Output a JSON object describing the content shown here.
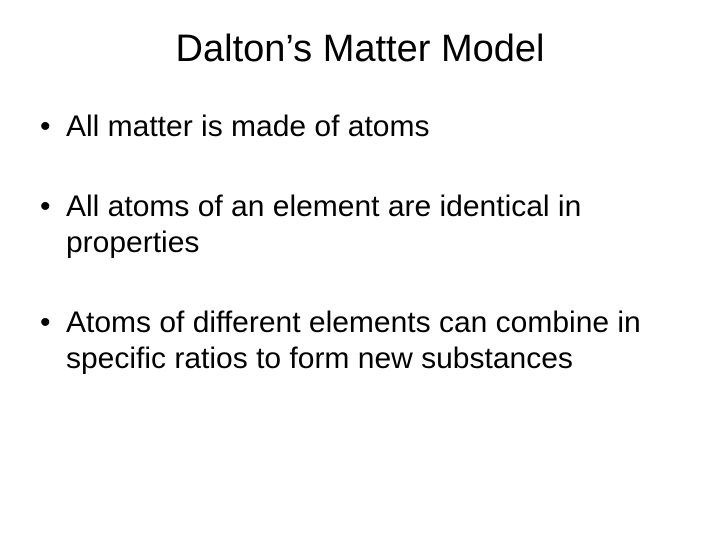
{
  "slide": {
    "title": "Dalton’s Matter Model",
    "title_fontsize": 38,
    "body_fontsize": 30,
    "background_color": "#ffffff",
    "text_color": "#000000",
    "bullets": [
      "All matter is made of atoms",
      "All atoms of an element are identical in properties",
      "Atoms of different elements can combine in specific ratios to form new substances"
    ]
  }
}
